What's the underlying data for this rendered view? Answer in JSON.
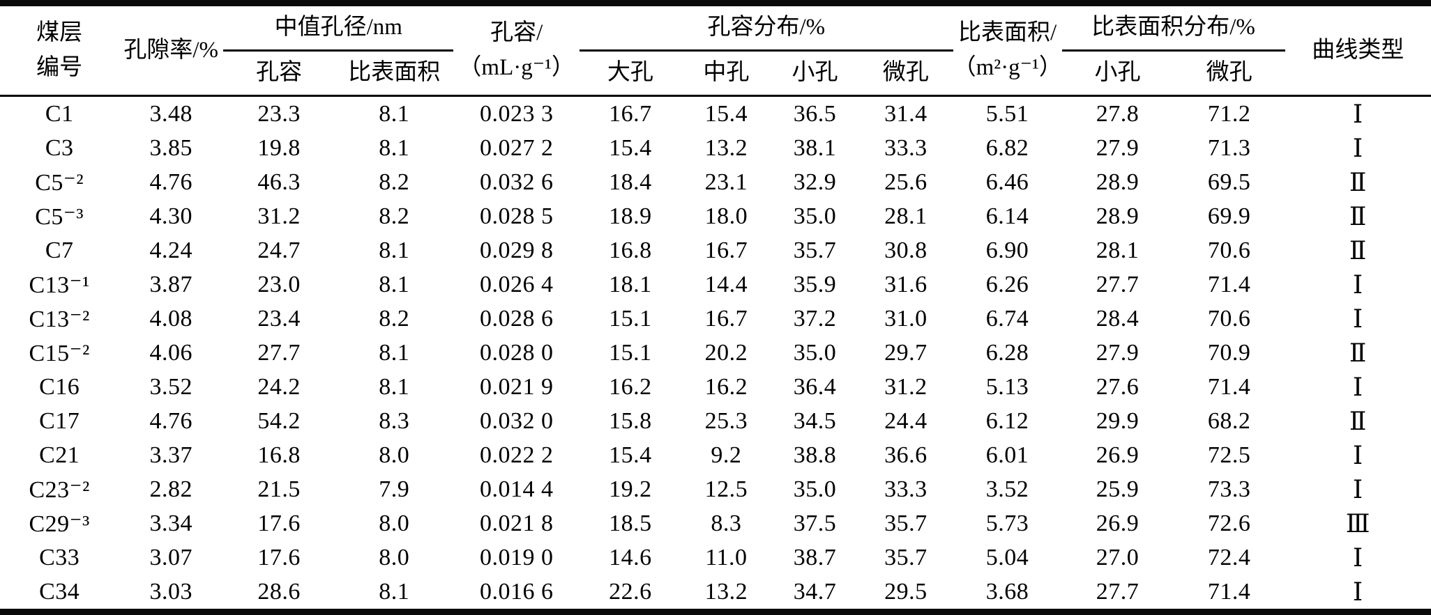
{
  "table": {
    "title_hint": "coal-seam-pore-structure-table",
    "header": {
      "seam_line1": "煤层",
      "seam_line2": "编号",
      "porosity": "孔隙率/%",
      "median_pore_group": "中值孔径/nm",
      "median_pore_sub": [
        "孔容",
        "比表面积"
      ],
      "pore_volume_line1": "孔容/",
      "pore_volume_line2": "（mL·g⁻¹）",
      "pore_volume_dist_group": "孔容分布/%",
      "pore_volume_dist_sub": [
        "大孔",
        "中孔",
        "小孔",
        "微孔"
      ],
      "surface_area_line1": "比表面积/",
      "surface_area_line2": "（m²·g⁻¹）",
      "surface_area_dist_group": "比表面积分布/%",
      "surface_area_dist_sub": [
        "小孔",
        "微孔"
      ],
      "curve_type": "曲线类型"
    },
    "column_semantics": [
      "seam-id",
      "porosity-pct",
      "median-pore-volume",
      "median-surface-area",
      "pore-volume",
      "macropore-pct",
      "mesopore-pct",
      "small-pore-pct",
      "micropore-pct",
      "specific-surface-area",
      "ssa-small-pore-pct",
      "ssa-micropore-pct",
      "curve-type"
    ],
    "rows": [
      [
        "C1",
        "3.48",
        "23.3",
        "8.1",
        "0.023 3",
        "16.7",
        "15.4",
        "36.5",
        "31.4",
        "5.51",
        "27.8",
        "71.2",
        "Ⅰ"
      ],
      [
        "C3",
        "3.85",
        "19.8",
        "8.1",
        "0.027 2",
        "15.4",
        "13.2",
        "38.1",
        "33.3",
        "6.82",
        "27.9",
        "71.3",
        "Ⅰ"
      ],
      [
        "C5⁻²",
        "4.76",
        "46.3",
        "8.2",
        "0.032 6",
        "18.4",
        "23.1",
        "32.9",
        "25.6",
        "6.46",
        "28.9",
        "69.5",
        "Ⅱ"
      ],
      [
        "C5⁻³",
        "4.30",
        "31.2",
        "8.2",
        "0.028 5",
        "18.9",
        "18.0",
        "35.0",
        "28.1",
        "6.14",
        "28.9",
        "69.9",
        "Ⅱ"
      ],
      [
        "C7",
        "4.24",
        "24.7",
        "8.1",
        "0.029 8",
        "16.8",
        "16.7",
        "35.7",
        "30.8",
        "6.90",
        "28.1",
        "70.6",
        "Ⅱ"
      ],
      [
        "C13⁻¹",
        "3.87",
        "23.0",
        "8.1",
        "0.026 4",
        "18.1",
        "14.4",
        "35.9",
        "31.6",
        "6.26",
        "27.7",
        "71.4",
        "Ⅰ"
      ],
      [
        "C13⁻²",
        "4.08",
        "23.4",
        "8.2",
        "0.028 6",
        "15.1",
        "16.7",
        "37.2",
        "31.0",
        "6.74",
        "28.4",
        "70.6",
        "Ⅰ"
      ],
      [
        "C15⁻²",
        "4.06",
        "27.7",
        "8.1",
        "0.028 0",
        "15.1",
        "20.2",
        "35.0",
        "29.7",
        "6.28",
        "27.9",
        "70.9",
        "Ⅱ"
      ],
      [
        "C16",
        "3.52",
        "24.2",
        "8.1",
        "0.021 9",
        "16.2",
        "16.2",
        "36.4",
        "31.2",
        "5.13",
        "27.6",
        "71.4",
        "Ⅰ"
      ],
      [
        "C17",
        "4.76",
        "54.2",
        "8.3",
        "0.032 0",
        "15.8",
        "25.3",
        "34.5",
        "24.4",
        "6.12",
        "29.9",
        "68.2",
        "Ⅱ"
      ],
      [
        "C21",
        "3.37",
        "16.8",
        "8.0",
        "0.022 2",
        "15.4",
        "9.2",
        "38.8",
        "36.6",
        "6.01",
        "26.9",
        "72.5",
        "Ⅰ"
      ],
      [
        "C23⁻²",
        "2.82",
        "21.5",
        "7.9",
        "0.014 4",
        "19.2",
        "12.5",
        "35.0",
        "33.3",
        "3.52",
        "25.9",
        "73.3",
        "Ⅰ"
      ],
      [
        "C29⁻³",
        "3.34",
        "17.6",
        "8.0",
        "0.021 8",
        "18.5",
        "8.3",
        "37.5",
        "35.7",
        "5.73",
        "26.9",
        "72.6",
        "Ⅲ"
      ],
      [
        "C33",
        "3.07",
        "17.6",
        "8.0",
        "0.019 0",
        "14.6",
        "11.0",
        "38.7",
        "35.7",
        "5.04",
        "27.0",
        "72.4",
        "Ⅰ"
      ],
      [
        "C34",
        "3.03",
        "28.6",
        "8.1",
        "0.016 6",
        "22.6",
        "13.2",
        "34.7",
        "29.5",
        "3.68",
        "27.7",
        "71.4",
        "Ⅰ"
      ]
    ],
    "colors": {
      "text": "#000000",
      "background": "#ffffff",
      "rule": "#0a0a0a"
    }
  }
}
